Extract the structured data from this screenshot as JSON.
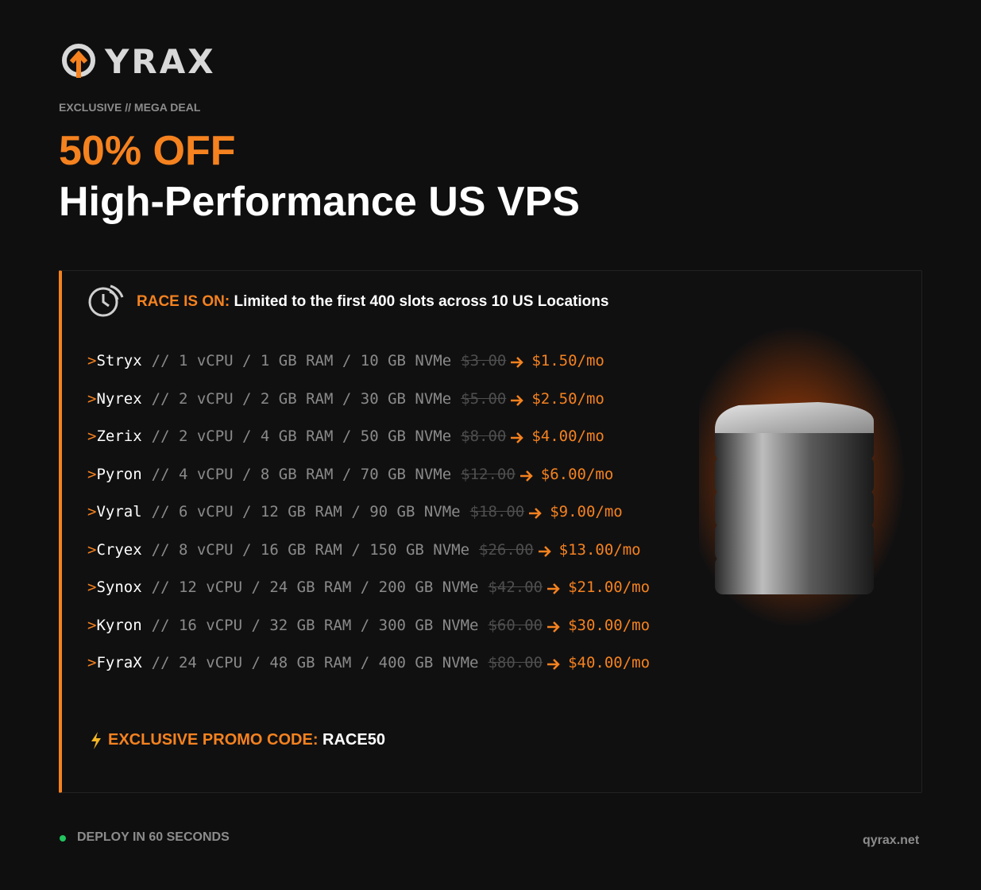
{
  "logo": "YRAX",
  "eyebrow": "EXCLUSIVE // MEGA DEAL",
  "headline": {
    "highlight": "50% OFF",
    "title": "High-Performance US VPS"
  },
  "race": {
    "label": "RACE IS ON:",
    "text": "Limited to the first 400 slots across 10 US Locations"
  },
  "plans": {
    "prompt": ">",
    "rows": [
      {
        "name": "Stryx",
        "specs": "// 1 vCPU / 1 GB RAM / 10 GB NVMe",
        "old_price": "$3.00",
        "new_price": "$1.50/mo"
      },
      {
        "name": "Nyrex",
        "specs": "// 2 vCPU / 2 GB RAM / 30 GB NVMe",
        "old_price": "$5.00",
        "new_price": "$2.50/mo"
      },
      {
        "name": "Zerix",
        "specs": "// 2 vCPU / 4 GB RAM / 50 GB NVMe",
        "old_price": "$8.00",
        "new_price": "$4.00/mo"
      },
      {
        "name": "Pyron",
        "specs": "// 4 vCPU / 8 GB RAM / 70 GB NVMe",
        "old_price": "$12.00",
        "new_price": "$6.00/mo"
      },
      {
        "name": "Vyral",
        "specs": "// 6 vCPU / 12 GB RAM / 90 GB NVMe",
        "old_price": "$18.00",
        "new_price": "$9.00/mo"
      },
      {
        "name": "Cryex",
        "specs": "// 8 vCPU / 16 GB RAM / 150 GB NVMe",
        "old_price": "$26.00",
        "new_price": "$13.00/mo"
      },
      {
        "name": "Synox",
        "specs": "// 12 vCPU / 24 GB RAM / 200 GB NVMe",
        "old_price": "$42.00",
        "new_price": "$21.00/mo"
      },
      {
        "name": "Kyron",
        "specs": "// 16 vCPU / 32 GB RAM / 300 GB NVMe",
        "old_price": "$60.00",
        "new_price": "$30.00/mo"
      },
      {
        "name": "FyraX",
        "specs": "// 24 vCPU / 48 GB RAM / 400 GB NVMe",
        "old_price": "$80.00",
        "new_price": "$40.00/mo"
      }
    ]
  },
  "promo": {
    "label": "EXCLUSIVE PROMO CODE:",
    "code": "RACE50"
  },
  "footer": {
    "status": "DEPLOY IN 60 SECONDS",
    "site": "qyrax.net"
  }
}
